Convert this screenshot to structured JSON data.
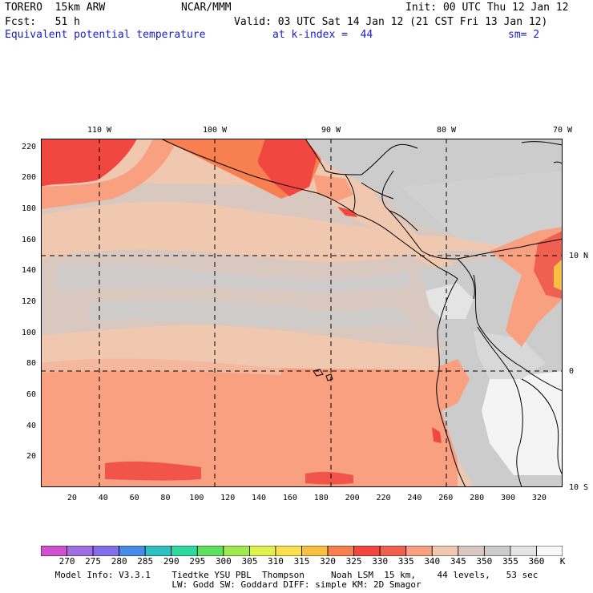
{
  "header": {
    "model": "TORERO  15km ARW",
    "center": "NCAR/MMM",
    "init": "Init: 00 UTC Thu 12 Jan 12",
    "fcst": "Fcst:   51 h",
    "valid": "Valid: 03 UTC Sat 14 Jan 12 (21 CST Fri 13 Jan 12)",
    "field": "Equivalent potential temperature",
    "level": "at k-index =  44",
    "smooth": "sm= 2"
  },
  "axes": {
    "x_ticks": [
      "20",
      "40",
      "60",
      "80",
      "100",
      "120",
      "140",
      "160",
      "180",
      "200",
      "220",
      "240",
      "260",
      "280",
      "300",
      "320"
    ],
    "y_ticks": [
      "20",
      "40",
      "60",
      "80",
      "100",
      "120",
      "140",
      "160",
      "180",
      "200",
      "220"
    ],
    "lon_labels": [
      "110 W",
      "100 W",
      "90 W",
      "80 W",
      "70 W"
    ],
    "lat_labels": [
      "10 N",
      "0",
      "10 S"
    ]
  },
  "colorbar": {
    "labels": [
      "270",
      "275",
      "280",
      "285",
      "290",
      "295",
      "300",
      "305",
      "310",
      "315",
      "320",
      "325",
      "330",
      "335",
      "340",
      "345",
      "350",
      "355",
      "360",
      "K"
    ],
    "colors": [
      "#d050d0",
      "#a070e0",
      "#8070e8",
      "#4a8ae8",
      "#30c0c0",
      "#30d8a0",
      "#60e060",
      "#a0e850",
      "#e0f050",
      "#f8e050",
      "#f8c040",
      "#f88050",
      "#f04840",
      "#f06050",
      "#f8a080",
      "#f0c8b0",
      "#d8c8c0",
      "#cccccc",
      "#e4e4e4",
      "#f8f8f8"
    ]
  },
  "map_colors": {
    "ocean_south": "#f8a080",
    "ocean_mid": "#f0c8b0",
    "ocean_grey": "#d8c8c0",
    "grey": "#cccccc",
    "light": "#e4e4e4",
    "white": "#f4f4f4",
    "hot": "#f04840",
    "warm": "#f88050",
    "yellow": "#f8c040"
  },
  "footer": {
    "line1": "Model Info: V3.3.1    Tiedtke YSU PBL  Thompson     Noah LSM  15 km,    44 levels,   53 sec",
    "line2": "LW: Godd SW: Goddard DIFF: simple KM: 2D Smagor"
  }
}
